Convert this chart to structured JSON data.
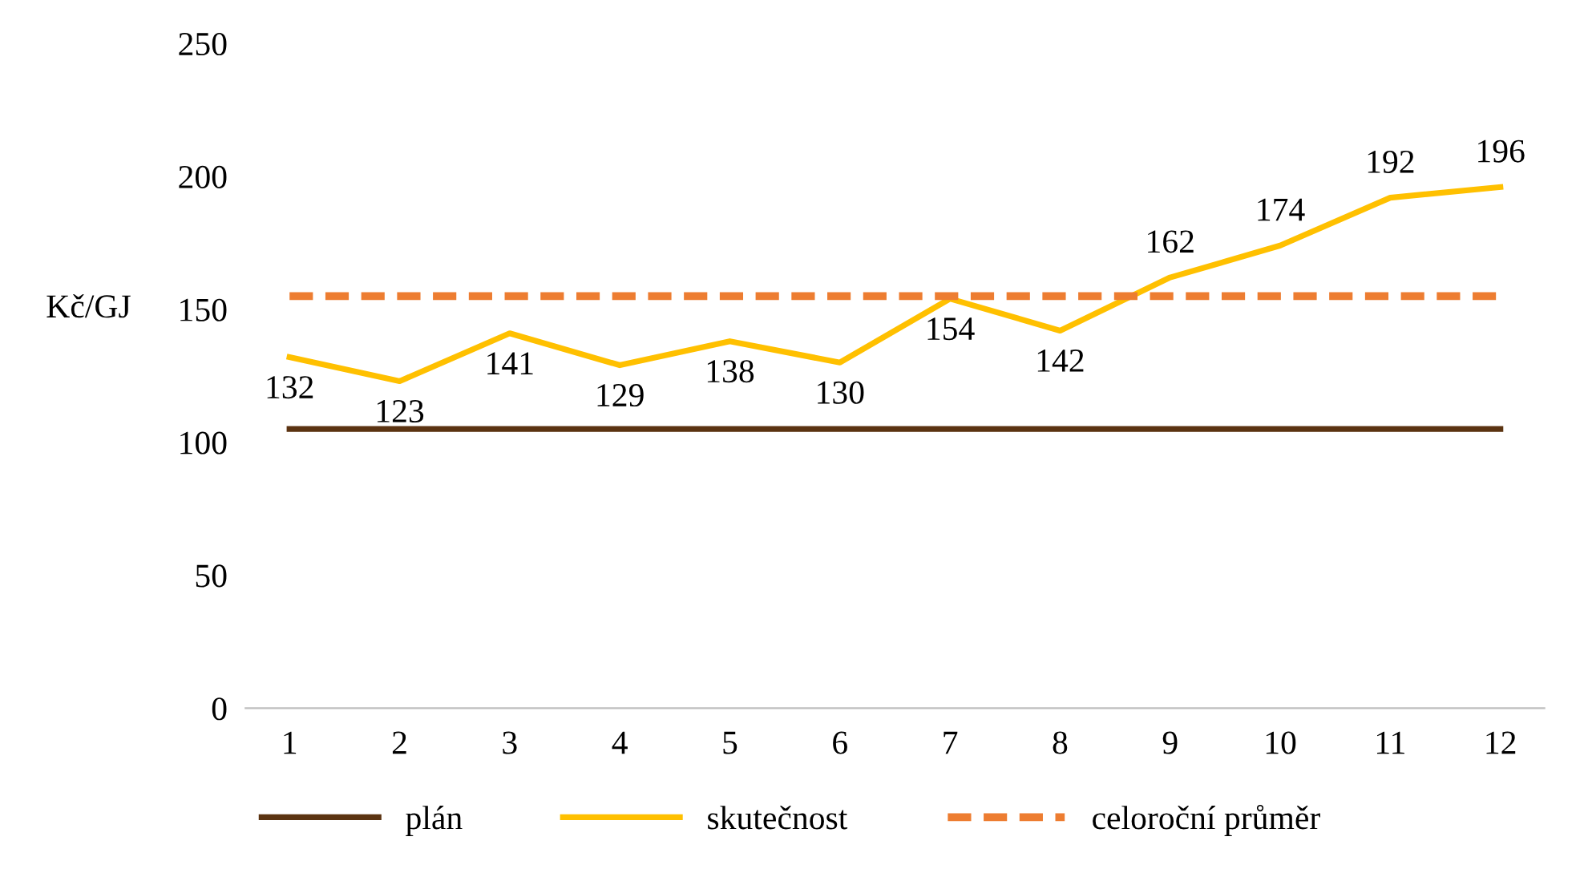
{
  "chart_data": {
    "type": "line",
    "categories": [
      "1",
      "2",
      "3",
      "4",
      "5",
      "6",
      "7",
      "8",
      "9",
      "10",
      "11",
      "12"
    ],
    "ylabel": "Kč/GJ",
    "ylim": [
      0,
      250
    ],
    "yticks": [
      0,
      50,
      100,
      150,
      200,
      250
    ],
    "grid": false,
    "legend": "bottom",
    "marker": "none",
    "series": [
      {
        "name": "plán",
        "color": "#5b3311",
        "values": [
          105,
          105,
          105,
          105,
          105,
          105,
          105,
          105,
          105,
          105,
          105,
          105
        ],
        "line_style": "solid"
      },
      {
        "name": "skutečnost",
        "color": "#ffc000",
        "values": [
          132,
          123,
          141,
          129,
          138,
          130,
          154,
          142,
          162,
          174,
          192,
          196
        ],
        "line_style": "solid",
        "value_labels": [
          "132",
          "123",
          "141",
          "129",
          "138",
          "130",
          "154",
          "142",
          "162",
          "174",
          "192",
          "196"
        ]
      },
      {
        "name": "celoroční průměr",
        "color": "#ed7d31",
        "values": [
          155,
          155,
          155,
          155,
          155,
          155,
          155,
          155,
          155,
          155,
          155,
          155
        ],
        "line_style": "dashed"
      }
    ]
  }
}
